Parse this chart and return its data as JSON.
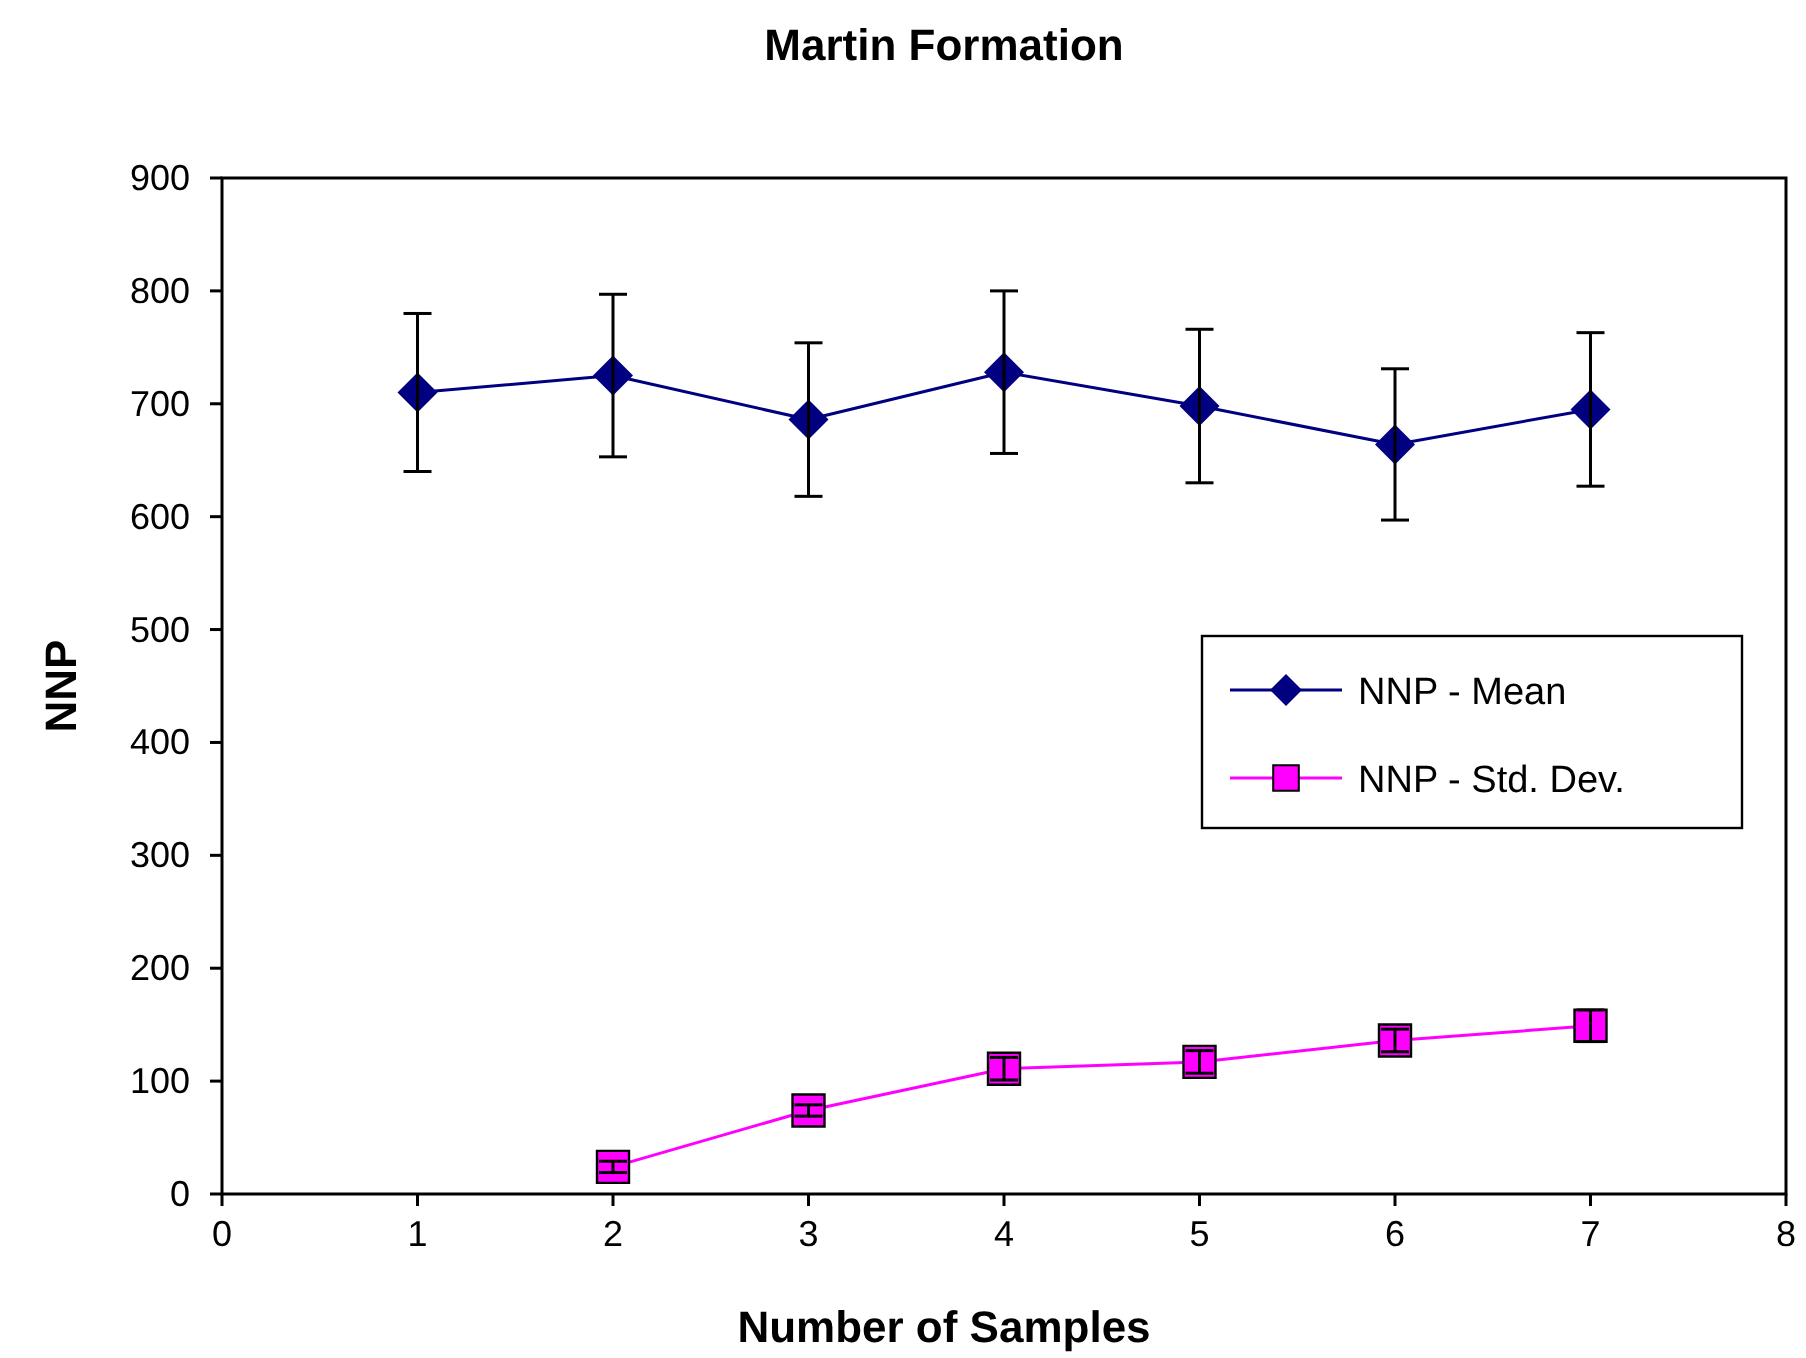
{
  "chart_data": {
    "type": "line",
    "title": "Martin Formation",
    "xlabel": "Number of Samples",
    "ylabel": "NNP",
    "xlim": [
      0,
      8
    ],
    "xticks": [
      0,
      1,
      2,
      3,
      4,
      5,
      6,
      7,
      8
    ],
    "ylim": [
      0,
      900
    ],
    "yticks": [
      0,
      100,
      200,
      300,
      400,
      500,
      600,
      700,
      800,
      900
    ],
    "grid": false,
    "legend": "right",
    "line_style": "solid",
    "series": [
      {
        "name": "NNP - Mean",
        "color": "#000080",
        "marker": "diamond",
        "x": [
          1,
          2,
          3,
          4,
          5,
          6,
          7
        ],
        "values": [
          710,
          725,
          686,
          728,
          698,
          664,
          695
        ],
        "errors": [
          70,
          72,
          68,
          72,
          68,
          67,
          68
        ]
      },
      {
        "name": "NNP - Std. Dev.",
        "color": "#ff00ff",
        "marker": "square",
        "x": [
          2,
          3,
          4,
          5,
          6,
          7
        ],
        "values": [
          24,
          74,
          111,
          117,
          136,
          149
        ],
        "errors": [
          5,
          5,
          10,
          10,
          10,
          14
        ]
      }
    ]
  }
}
